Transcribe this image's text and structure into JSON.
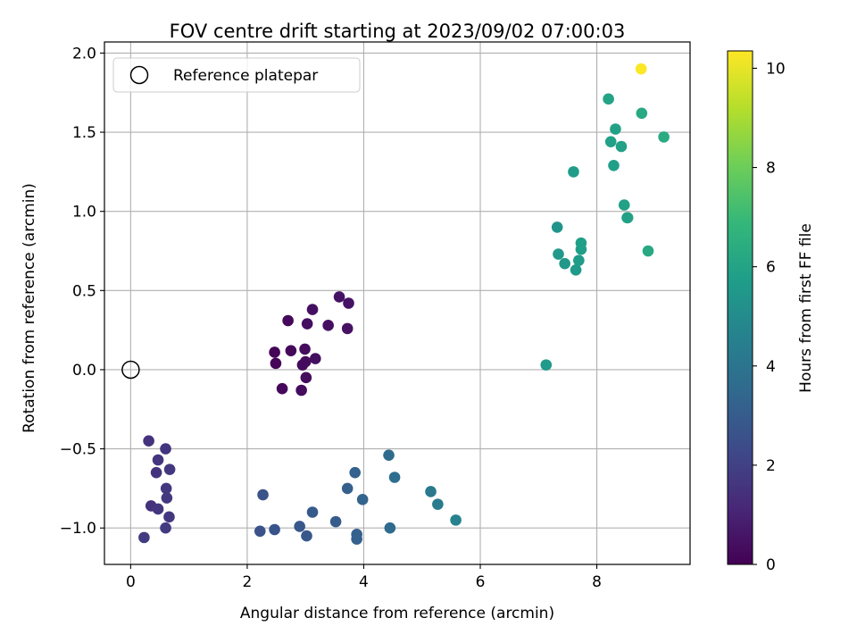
{
  "chart_data": {
    "type": "scatter",
    "title": "FOV centre drift starting at 2023/09/02 07:00:03",
    "xlabel": "Angular distance from reference (arcmin)",
    "ylabel": "Rotation from reference (arcmin)",
    "xlim": [
      -0.45,
      9.6
    ],
    "ylim": [
      -1.23,
      2.07
    ],
    "x_ticks": [
      "0",
      "2",
      "4",
      "6",
      "8"
    ],
    "x_tick_values": [
      0,
      2,
      4,
      6,
      8
    ],
    "y_ticks": [
      "2.0",
      "1.5",
      "1.0",
      "0.5",
      "0.0",
      "−0.5",
      "−1.0"
    ],
    "y_tick_values": [
      2.0,
      1.5,
      1.0,
      0.5,
      0.0,
      -0.5,
      -1.0
    ],
    "grid": true,
    "legend": {
      "placement": "top-left",
      "entries": [
        {
          "label": "Reference platepar",
          "marker": "open-circle"
        }
      ]
    },
    "reference_point": {
      "x": 0,
      "y": 0
    },
    "colorbar": {
      "label": "Hours from first FF file",
      "colormap": "viridis",
      "range": [
        0,
        10.35
      ],
      "ticks": [
        "0",
        "2",
        "4",
        "6",
        "8",
        "10"
      ],
      "tick_values": [
        0,
        2,
        4,
        6,
        8,
        10
      ],
      "colors": [
        "#440154",
        "#482878",
        "#3e4a89",
        "#31688e",
        "#26828e",
        "#1f9e89",
        "#35b779",
        "#6ece58",
        "#b5de2b",
        "#fde725"
      ]
    },
    "points": [
      {
        "x": 2.47,
        "y": 0.11,
        "hours": 0.1
      },
      {
        "x": 2.49,
        "y": 0.04,
        "hours": 0.1
      },
      {
        "x": 2.6,
        "y": -0.12,
        "hours": 0.2
      },
      {
        "x": 2.7,
        "y": 0.31,
        "hours": 0.2
      },
      {
        "x": 2.75,
        "y": 0.12,
        "hours": 0.2
      },
      {
        "x": 2.93,
        "y": -0.13,
        "hours": 0.3
      },
      {
        "x": 2.95,
        "y": 0.03,
        "hours": 0.3
      },
      {
        "x": 3.0,
        "y": 0.05,
        "hours": 0.3
      },
      {
        "x": 2.99,
        "y": 0.13,
        "hours": 0.3
      },
      {
        "x": 3.01,
        "y": -0.05,
        "hours": 0.3
      },
      {
        "x": 3.03,
        "y": 0.29,
        "hours": 0.4
      },
      {
        "x": 3.12,
        "y": 0.38,
        "hours": 0.4
      },
      {
        "x": 3.17,
        "y": 0.07,
        "hours": 0.4
      },
      {
        "x": 3.39,
        "y": 0.28,
        "hours": 0.4
      },
      {
        "x": 3.58,
        "y": 0.46,
        "hours": 0.5
      },
      {
        "x": 3.72,
        "y": 0.26,
        "hours": 0.5
      },
      {
        "x": 3.74,
        "y": 0.42,
        "hours": 0.5
      },
      {
        "x": 0.31,
        "y": -0.45,
        "hours": 1.5
      },
      {
        "x": 0.35,
        "y": -0.86,
        "hours": 1.5
      },
      {
        "x": 0.44,
        "y": -0.65,
        "hours": 1.5
      },
      {
        "x": 0.47,
        "y": -0.57,
        "hours": 1.6
      },
      {
        "x": 0.47,
        "y": -0.88,
        "hours": 1.6
      },
      {
        "x": 0.6,
        "y": -0.5,
        "hours": 1.6
      },
      {
        "x": 0.61,
        "y": -0.75,
        "hours": 1.7
      },
      {
        "x": 0.62,
        "y": -0.81,
        "hours": 1.7
      },
      {
        "x": 0.67,
        "y": -0.63,
        "hours": 1.7
      },
      {
        "x": 0.66,
        "y": -0.93,
        "hours": 1.7
      },
      {
        "x": 0.6,
        "y": -1.0,
        "hours": 1.8
      },
      {
        "x": 0.23,
        "y": -1.06,
        "hours": 1.8
      },
      {
        "x": 2.22,
        "y": -1.02,
        "hours": 2.6
      },
      {
        "x": 2.27,
        "y": -0.79,
        "hours": 2.6
      },
      {
        "x": 2.47,
        "y": -1.01,
        "hours": 2.7
      },
      {
        "x": 2.9,
        "y": -0.99,
        "hours": 2.8
      },
      {
        "x": 3.02,
        "y": -1.05,
        "hours": 2.8
      },
      {
        "x": 3.12,
        "y": -0.9,
        "hours": 2.9
      },
      {
        "x": 3.52,
        "y": -0.96,
        "hours": 3.0
      },
      {
        "x": 3.72,
        "y": -0.75,
        "hours": 3.1
      },
      {
        "x": 3.85,
        "y": -0.65,
        "hours": 3.2
      },
      {
        "x": 3.88,
        "y": -1.04,
        "hours": 3.2
      },
      {
        "x": 3.88,
        "y": -1.07,
        "hours": 3.2
      },
      {
        "x": 3.98,
        "y": -0.82,
        "hours": 3.3
      },
      {
        "x": 4.43,
        "y": -0.54,
        "hours": 3.6
      },
      {
        "x": 4.45,
        "y": -1.0,
        "hours": 3.6
      },
      {
        "x": 4.53,
        "y": -0.68,
        "hours": 3.7
      },
      {
        "x": 5.15,
        "y": -0.77,
        "hours": 4.2
      },
      {
        "x": 5.27,
        "y": -0.85,
        "hours": 4.3
      },
      {
        "x": 5.58,
        "y": -0.95,
        "hours": 4.6
      },
      {
        "x": 7.13,
        "y": 0.03,
        "hours": 5.6
      },
      {
        "x": 7.32,
        "y": 0.9,
        "hours": 5.4
      },
      {
        "x": 7.34,
        "y": 0.73,
        "hours": 5.5
      },
      {
        "x": 7.45,
        "y": 0.67,
        "hours": 5.5
      },
      {
        "x": 7.6,
        "y": 1.25,
        "hours": 5.7
      },
      {
        "x": 7.64,
        "y": 0.63,
        "hours": 5.6
      },
      {
        "x": 7.69,
        "y": 0.69,
        "hours": 5.7
      },
      {
        "x": 7.73,
        "y": 0.8,
        "hours": 5.8
      },
      {
        "x": 7.73,
        "y": 0.76,
        "hours": 5.8
      },
      {
        "x": 8.2,
        "y": 1.71,
        "hours": 6.0
      },
      {
        "x": 8.24,
        "y": 1.44,
        "hours": 5.9
      },
      {
        "x": 8.29,
        "y": 1.29,
        "hours": 5.8
      },
      {
        "x": 8.32,
        "y": 1.52,
        "hours": 5.9
      },
      {
        "x": 8.42,
        "y": 1.41,
        "hours": 5.9
      },
      {
        "x": 8.47,
        "y": 1.04,
        "hours": 5.9
      },
      {
        "x": 8.53,
        "y": 0.96,
        "hours": 5.9
      },
      {
        "x": 8.52,
        "y": 0.96,
        "hours": 5.9
      },
      {
        "x": 8.77,
        "y": 1.62,
        "hours": 6.2
      },
      {
        "x": 8.88,
        "y": 0.75,
        "hours": 6.2
      },
      {
        "x": 9.15,
        "y": 1.47,
        "hours": 6.3
      },
      {
        "x": 8.76,
        "y": 1.9,
        "hours": 10.3
      }
    ]
  }
}
